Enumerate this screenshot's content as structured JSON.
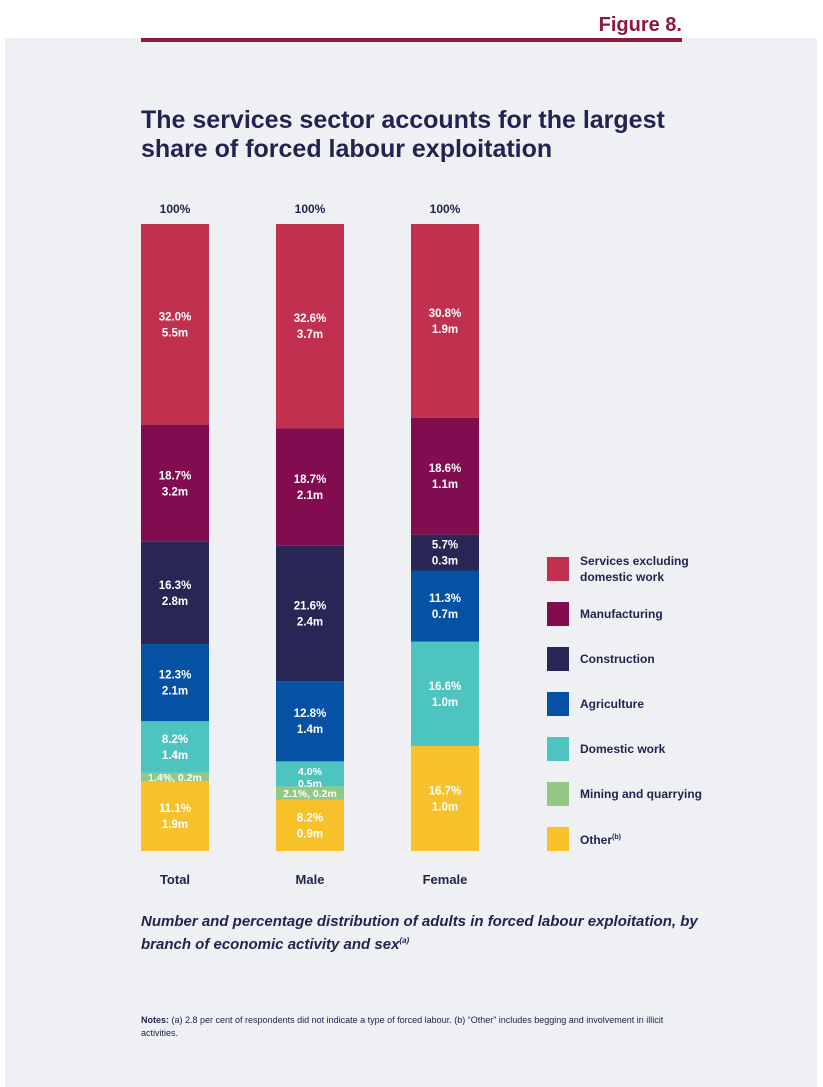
{
  "figure_label": "Figure 8.",
  "title": "The services sector accounts for the largest share of forced labour exploitation",
  "caption": {
    "text": "Number and percentage distribution of adults in forced labour exploitation, by branch of economic activity and sex",
    "superscript": "(a)"
  },
  "notes": {
    "prefix": "Notes:",
    "text": " (a) 2.8 per cent of respondents did not indicate a type of forced labour. (b) “Other” includes begging and involvement in illicit activities."
  },
  "colors": {
    "accent": "#8b1a3f",
    "services": "#c1304f",
    "manufacturing": "#820c50",
    "construction": "#272654",
    "agriculture": "#0551a3",
    "domestic": "#4ec4c1",
    "mining": "#92c883",
    "other": "#f6c12a"
  },
  "legend": [
    {
      "key": "services",
      "label": "Services excluding domestic work",
      "sup": ""
    },
    {
      "key": "manufacturing",
      "label": "Manufacturing",
      "sup": ""
    },
    {
      "key": "construction",
      "label": "Construction",
      "sup": ""
    },
    {
      "key": "agriculture",
      "label": "Agriculture",
      "sup": ""
    },
    {
      "key": "domestic",
      "label": "Domestic work",
      "sup": ""
    },
    {
      "key": "mining",
      "label": "Mining and quarrying",
      "sup": ""
    },
    {
      "key": "other",
      "label": "Other",
      "sup": "(b)"
    }
  ],
  "chart_data": {
    "type": "bar",
    "stacked": true,
    "title": "The services sector accounts for the largest share of forced labour exploitation",
    "categories": [
      "Total",
      "Male",
      "Female"
    ],
    "totals": [
      "100%",
      "100%",
      "100%"
    ],
    "series_order_bottom_to_top": [
      "Other",
      "Mining and quarrying",
      "Domestic work",
      "Agriculture",
      "Construction",
      "Manufacturing",
      "Services excluding domestic work"
    ],
    "series": [
      {
        "name": "Services excluding domestic work",
        "key": "services",
        "values": [
          32.0,
          32.6,
          30.8
        ],
        "labels": [
          "32.0%\n5.5m",
          "32.6%\n3.7m",
          "30.8%\n1.9m"
        ]
      },
      {
        "name": "Manufacturing",
        "key": "manufacturing",
        "values": [
          18.7,
          18.7,
          18.6
        ],
        "labels": [
          "18.7%\n3.2m",
          "18.7%\n2.1m",
          "18.6%\n1.1m"
        ]
      },
      {
        "name": "Construction",
        "key": "construction",
        "values": [
          16.3,
          21.6,
          5.7
        ],
        "labels": [
          "16.3%\n2.8m",
          "21.6%\n2.4m",
          "5.7%\n0.3m"
        ]
      },
      {
        "name": "Agriculture",
        "key": "agriculture",
        "values": [
          12.3,
          12.8,
          11.3
        ],
        "labels": [
          "12.3%\n2.1m",
          "12.8%\n1.4m",
          "11.3%\n0.7m"
        ]
      },
      {
        "name": "Domestic work",
        "key": "domestic",
        "values": [
          8.2,
          4.0,
          16.6
        ],
        "labels": [
          "8.2%\n1.4m",
          "4.0%\n0.5m",
          "16.6%\n1.0m"
        ]
      },
      {
        "name": "Mining and quarrying",
        "key": "mining",
        "values": [
          1.4,
          2.1,
          0
        ],
        "labels": [
          "1.4%, 0.2m",
          "2.1%, 0.2m",
          ""
        ]
      },
      {
        "name": "Other",
        "key": "other",
        "values": [
          11.1,
          8.2,
          16.7
        ],
        "labels": [
          "11.1%\n1.9m",
          "8.2%\n0.9m",
          "16.7%\n1.0m"
        ]
      }
    ],
    "ylim": [
      0,
      100
    ],
    "xlabel": "",
    "ylabel": ""
  }
}
